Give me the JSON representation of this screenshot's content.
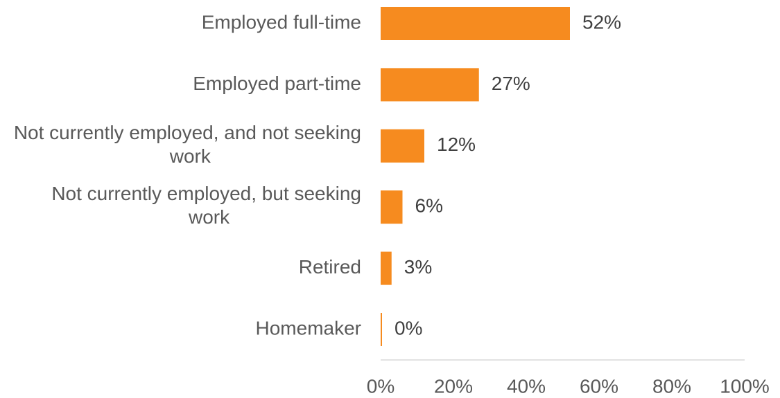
{
  "chart_data": {
    "type": "bar",
    "orientation": "horizontal",
    "categories": [
      "Employed full-time",
      "Employed part-time",
      "Not currently employed, and not seeking work",
      "Not currently employed, but seeking work",
      "Retired",
      "Homemaker"
    ],
    "values": [
      52,
      27,
      12,
      6,
      3,
      0
    ],
    "value_labels": [
      "52%",
      "27%",
      "12%",
      "6%",
      "3%",
      "0%"
    ],
    "color": "#f68b1f",
    "xlim": [
      0,
      100
    ],
    "xticks": [
      {
        "value": 0,
        "label": "0%"
      },
      {
        "value": 20,
        "label": "20%"
      },
      {
        "value": 40,
        "label": "40%"
      },
      {
        "value": 60,
        "label": "60%"
      },
      {
        "value": 80,
        "label": "80%"
      },
      {
        "value": 100,
        "label": "100%"
      }
    ],
    "grid": false
  }
}
